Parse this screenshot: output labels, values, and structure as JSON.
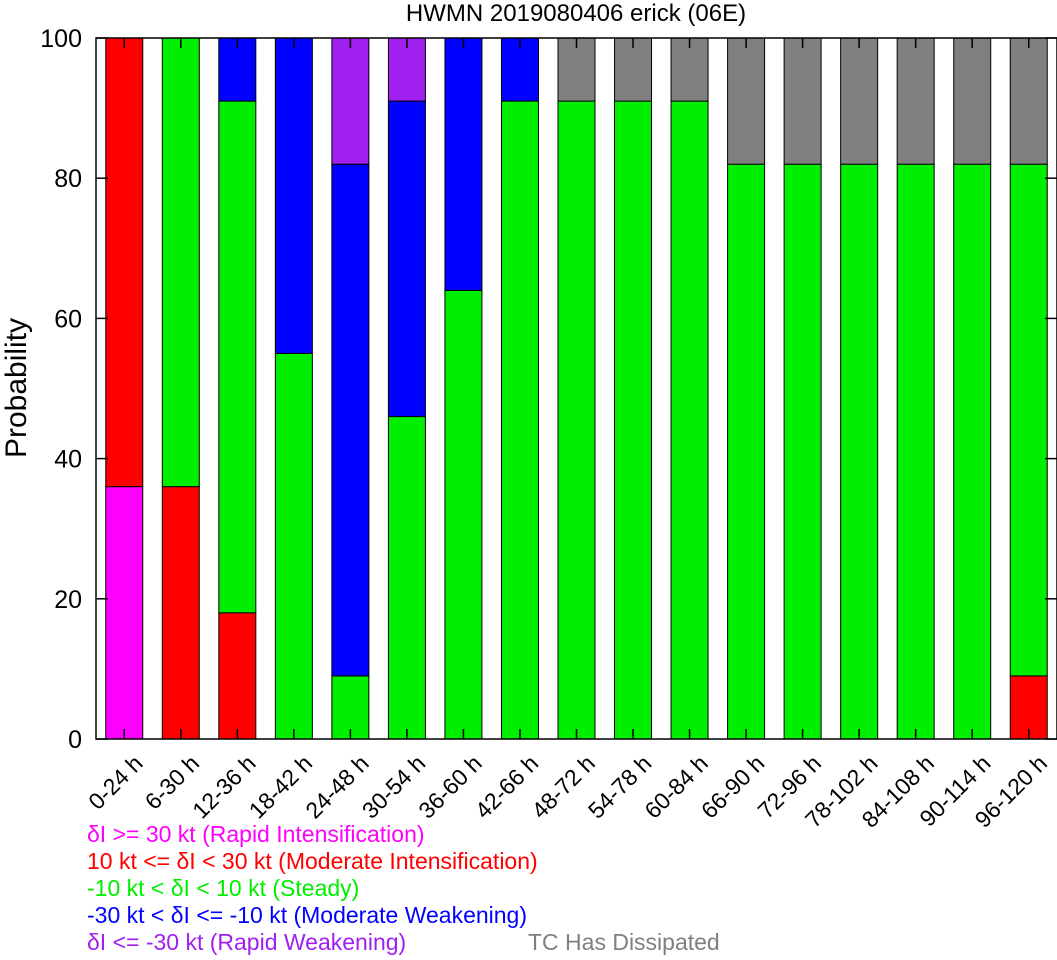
{
  "chart_data": {
    "type": "bar",
    "stacked": true,
    "title": "HWMN 2019080406 erick (06E)",
    "xlabel": "",
    "ylabel": "Probability",
    "ylim": [
      0,
      100
    ],
    "yticks": [
      0,
      20,
      40,
      60,
      80,
      100
    ],
    "grid": false,
    "legend_position": "bottom-left",
    "categories": [
      "0-24 h",
      "6-30 h",
      "12-36 h",
      "18-42 h",
      "24-48 h",
      "30-54 h",
      "36-60 h",
      "42-66 h",
      "48-72 h",
      "54-78 h",
      "60-84 h",
      "66-90 h",
      "72-96 h",
      "78-102 h",
      "84-108 h",
      "90-114 h",
      "96-120 h"
    ],
    "series": [
      {
        "name": "δI >= 30 kt (Rapid Intensification)",
        "color": "#ff00ff",
        "values": [
          36,
          0,
          0,
          0,
          0,
          0,
          0,
          0,
          0,
          0,
          0,
          0,
          0,
          0,
          0,
          0,
          0
        ]
      },
      {
        "name": "10 kt <= δI < 30 kt (Moderate Intensification)",
        "color": "#ff0000",
        "values": [
          64,
          36,
          18,
          0,
          0,
          0,
          0,
          0,
          0,
          0,
          0,
          0,
          0,
          0,
          0,
          0,
          9
        ]
      },
      {
        "name": "-10 kt < δI < 10 kt (Steady)",
        "color": "#00ee00",
        "values": [
          0,
          64,
          73,
          55,
          9,
          46,
          64,
          91,
          91,
          91,
          91,
          82,
          82,
          82,
          82,
          82,
          73
        ]
      },
      {
        "name": "-30 kt < δI <= -10 kt (Moderate Weakening)",
        "color": "#0000ff",
        "values": [
          0,
          0,
          9,
          45,
          73,
          45,
          36,
          9,
          0,
          0,
          0,
          0,
          0,
          0,
          0,
          0,
          0
        ]
      },
      {
        "name": "δI <= -30 kt (Rapid Weakening)",
        "color": "#a020f0",
        "values": [
          0,
          0,
          0,
          0,
          18,
          9,
          0,
          0,
          0,
          0,
          0,
          0,
          0,
          0,
          0,
          0,
          0
        ]
      },
      {
        "name": "TC Has Dissipated",
        "color": "#808080",
        "values": [
          0,
          0,
          0,
          0,
          0,
          0,
          0,
          0,
          9,
          9,
          9,
          18,
          18,
          18,
          18,
          18,
          18
        ]
      }
    ]
  }
}
